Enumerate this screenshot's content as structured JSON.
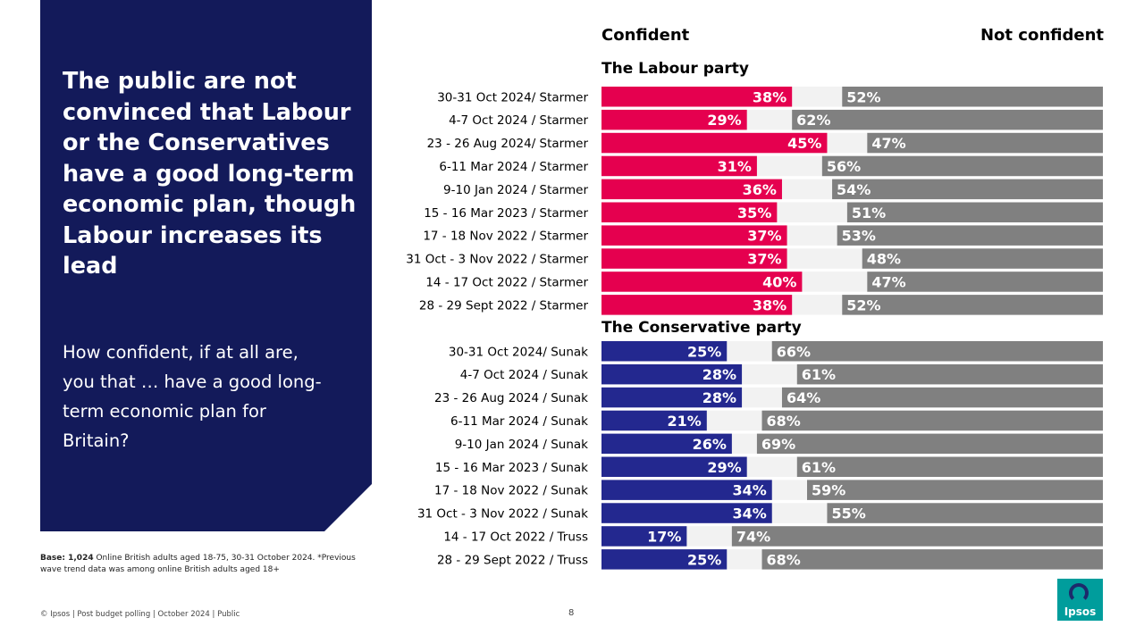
{
  "headline": "The public are not convinced that Labour or the Conservatives have a good long-term economic plan, though Labour increases its lead",
  "question": "How confident, if at all are, you that … have a good long-term economic plan for Britain?",
  "base": {
    "label": "Base: 1,024",
    "text": " Online British adults aged 18-75, 30-31 October 2024. *Previous wave trend data was among online British adults aged 18+"
  },
  "footer": "© Ipsos | Post budget polling | October 2024 | Public",
  "page_number": "8",
  "logo": "Ipsos",
  "colors": {
    "labour": "#e5004f",
    "conservative": "#23288f",
    "not_confident": "#808080",
    "neutral": "#f2f2f2",
    "panel": "#131a5a"
  },
  "chart_data": {
    "type": "bar",
    "orientation": "horizontal-stacked",
    "legend": {
      "left": "Confident",
      "right": "Not confident"
    },
    "xlim": [
      0,
      100
    ],
    "groups": [
      {
        "name": "The Labour party",
        "categories": [
          "30-31 Oct 2024/ Starmer",
          "4-7 Oct 2024 / Starmer",
          "23 - 26 Aug 2024/ Starmer",
          "6-11 Mar 2024 / Starmer",
          "9-10 Jan 2024 / Starmer",
          "15 - 16 Mar 2023 / Starmer",
          "17 - 18 Nov 2022 / Starmer",
          "31 Oct - 3 Nov 2022 / Starmer",
          "14 - 17 Oct 2022 / Starmer",
          "28 - 29 Sept 2022 / Starmer"
        ],
        "series": [
          {
            "name": "Confident",
            "values": [
              38,
              29,
              45,
              31,
              36,
              35,
              37,
              37,
              40,
              38
            ]
          },
          {
            "name": "Not confident",
            "values": [
              52,
              62,
              47,
              56,
              54,
              51,
              53,
              48,
              47,
              52
            ]
          }
        ]
      },
      {
        "name": "The Conservative party",
        "categories": [
          "30-31 Oct 2024/ Sunak",
          "4-7 Oct 2024 / Sunak",
          "23 - 26 Aug 2024 / Sunak",
          "6-11 Mar 2024 / Sunak",
          "9-10 Jan 2024 / Sunak",
          "15 - 16 Mar 2023 / Sunak",
          "17 - 18 Nov 2022 / Sunak",
          "31 Oct - 3 Nov 2022 / Sunak",
          "14 - 17 Oct 2022 / Truss",
          "28 - 29 Sept 2022 / Truss"
        ],
        "series": [
          {
            "name": "Confident",
            "values": [
              25,
              28,
              28,
              21,
              26,
              29,
              34,
              34,
              17,
              25
            ]
          },
          {
            "name": "Not confident",
            "values": [
              66,
              61,
              64,
              68,
              69,
              61,
              59,
              55,
              74,
              68
            ]
          }
        ]
      }
    ]
  }
}
